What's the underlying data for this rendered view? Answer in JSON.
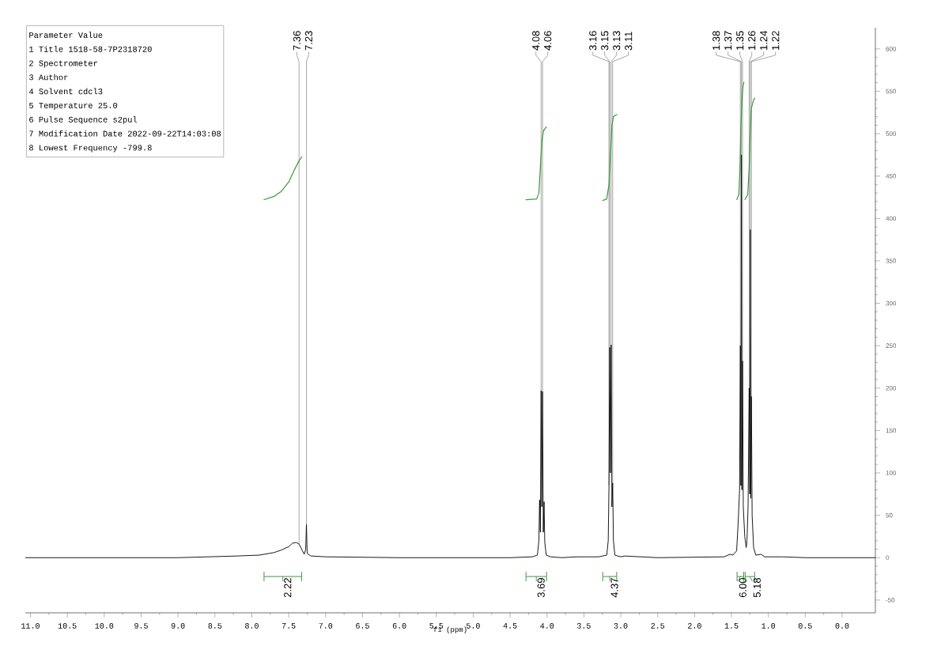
{
  "chart_data": {
    "type": "line",
    "xlabel": "f1 (ppm)",
    "xlim": [
      11.07,
      -0.45
    ],
    "ylim": [
      -65,
      625
    ],
    "xticks": [
      {
        "value": 11,
        "label": "11.0"
      },
      {
        "value": 10.5,
        "label": "10.5"
      },
      {
        "value": 10,
        "label": "10.0"
      },
      {
        "value": 9.5,
        "label": "9.5"
      },
      {
        "value": 9,
        "label": "9.0"
      },
      {
        "value": 8.5,
        "label": "8.5"
      },
      {
        "value": 8,
        "label": "8.0"
      },
      {
        "value": 7.5,
        "label": "7.5"
      },
      {
        "value": 7,
        "label": "7.0"
      },
      {
        "value": 6.5,
        "label": "6.5"
      },
      {
        "value": 6,
        "label": "6.0"
      },
      {
        "value": 5.5,
        "label": "5.5"
      },
      {
        "value": 5,
        "label": "5.0"
      },
      {
        "value": 4.5,
        "label": "4.5"
      },
      {
        "value": 4,
        "label": "4.0"
      },
      {
        "value": 3.5,
        "label": "3.5"
      },
      {
        "value": 3,
        "label": "3.0"
      },
      {
        "value": 2.5,
        "label": "2.5"
      },
      {
        "value": 2,
        "label": "2.0"
      },
      {
        "value": 1.5,
        "label": "1.5"
      },
      {
        "value": 1,
        "label": "1.0"
      },
      {
        "value": 0.5,
        "label": "0.5"
      },
      {
        "value": 0,
        "label": "0.0"
      }
    ],
    "yticks": [
      -50,
      0,
      50,
      100,
      150,
      200,
      250,
      300,
      350,
      400,
      450,
      500,
      550,
      600
    ],
    "marker": "none",
    "series": [
      {
        "color": "#000000",
        "x": [
          11.07,
          9.0,
          8.2,
          7.9,
          7.7,
          7.6,
          7.5,
          7.45,
          7.4,
          7.36,
          7.32,
          7.29,
          7.27,
          7.26,
          7.25,
          7.2,
          7.0,
          6.0,
          4.5,
          4.2,
          4.13,
          4.11,
          4.1,
          4.09,
          4.08,
          4.07,
          4.06,
          4.05,
          4.04,
          4.03,
          4.01,
          3.95,
          3.8,
          3.6,
          3.3,
          3.19,
          3.17,
          3.16,
          3.15,
          3.14,
          3.13,
          3.12,
          3.11,
          3.1,
          3.08,
          3.0,
          2.95,
          2.5,
          1.6,
          1.52,
          1.48,
          1.43,
          1.41,
          1.39,
          1.38,
          1.372,
          1.365,
          1.358,
          1.35,
          1.34,
          1.32,
          1.3,
          1.29,
          1.275,
          1.26,
          1.252,
          1.245,
          1.238,
          1.23,
          1.22,
          1.2,
          1.17,
          1.1,
          1.05,
          0.8,
          0.5,
          -0.45
        ],
        "values": [
          0,
          0,
          2,
          3,
          6,
          9,
          13,
          17,
          18,
          16,
          9,
          4,
          10,
          39,
          5,
          2,
          1,
          0,
          0,
          1,
          3,
          20,
          68,
          30,
          197,
          60,
          196,
          30,
          66,
          18,
          3,
          1,
          0,
          1,
          1,
          3,
          20,
          85,
          248,
          100,
          251,
          60,
          88,
          20,
          3,
          1,
          2,
          0,
          1,
          4,
          3,
          8,
          40,
          80,
          250,
          85,
          475,
          80,
          232,
          60,
          25,
          12,
          20,
          60,
          200,
          75,
          387,
          70,
          190,
          50,
          12,
          3,
          4,
          1,
          1,
          0,
          0
        ]
      },
      {
        "color": "#3a9a3a",
        "x": [
          7.84,
          7.7,
          7.6,
          7.5,
          7.42,
          7.36,
          7.32
        ],
        "values": [
          422,
          426,
          432,
          443,
          458,
          468,
          473
        ]
      },
      {
        "color": "#3a9a3a",
        "x": [
          4.29,
          4.14,
          4.11,
          4.09,
          4.07,
          4.05,
          4.02,
          4.0
        ],
        "values": [
          422,
          423,
          430,
          460,
          490,
          503,
          507,
          508
        ]
      },
      {
        "color": "#3a9a3a",
        "x": [
          3.25,
          3.19,
          3.16,
          3.14,
          3.12,
          3.1,
          3.05
        ],
        "values": [
          421,
          423,
          440,
          475,
          510,
          520,
          523
        ]
      },
      {
        "color": "#3a9a3a",
        "x": [
          1.43,
          1.4,
          1.385,
          1.37,
          1.355,
          1.34,
          1.33
        ],
        "values": [
          422,
          428,
          460,
          510,
          545,
          558,
          561
        ]
      },
      {
        "color": "#3a9a3a",
        "x": [
          1.32,
          1.28,
          1.26,
          1.245,
          1.23,
          1.2,
          1.18
        ],
        "values": [
          422,
          428,
          460,
          500,
          530,
          540,
          542
        ]
      }
    ],
    "annotations": [
      "Parameter Value",
      "1 Title 1518-58-7P2318720",
      "2 Spectrometer",
      "3 Author",
      "4 Solvent cdcl3",
      "5 Temperature 25.0",
      "6 Pulse Sequence s2pul",
      "7 Modification Date 2022-09-22T14:03:08",
      "8 Lowest Frequency -799.8",
      "2.22",
      "3.69",
      "4.37",
      "6.00",
      "5.18",
      {
        "text": "7.36",
        "x": 7.36,
        "y": 16
      },
      {
        "text": "7.23",
        "x": 7.26,
        "y": 39
      },
      {
        "text": "4.08",
        "x": 4.08,
        "y": 197
      },
      {
        "text": "4.06",
        "x": 4.06,
        "y": 196
      },
      {
        "text": "3.16",
        "x": 3.16,
        "y": 85
      },
      {
        "text": "3.15",
        "x": 3.15,
        "y": 248
      },
      {
        "text": "3.13",
        "x": 3.13,
        "y": 251
      },
      {
        "text": "3.11",
        "x": 3.11,
        "y": 88
      },
      {
        "text": "1.38",
        "x": 1.38,
        "y": 250
      },
      {
        "text": "1.37",
        "x": 1.365,
        "y": 475
      },
      {
        "text": "1.35",
        "x": 1.35,
        "y": 232
      },
      {
        "text": "1.26",
        "x": 1.26,
        "y": 200
      },
      {
        "text": "1.24",
        "x": 1.245,
        "y": 387
      },
      {
        "text": "1.22",
        "x": 1.23,
        "y": 190
      }
    ]
  }
}
